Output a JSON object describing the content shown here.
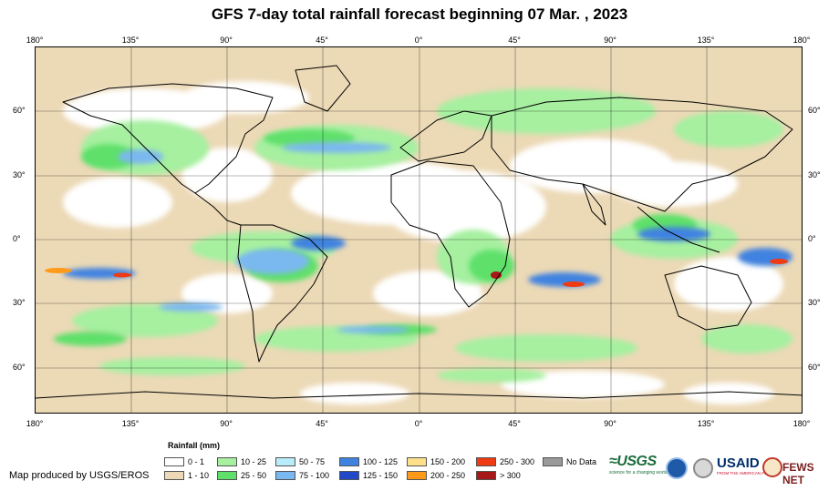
{
  "title": "GFS 7-day total rainfall forecast beginning 07 Mar. , 2023",
  "longitude_ticks": [
    "180°",
    "135°",
    "90°",
    "45°",
    "0°",
    "45°",
    "90°",
    "135°",
    "180°"
  ],
  "latitude_ticks": [
    "60°",
    "30°",
    "0°",
    "30°",
    "60°"
  ],
  "legend": {
    "title": "Rainfall (mm)",
    "items": [
      {
        "label": "0 - 1",
        "color": "#ffffff"
      },
      {
        "label": "1 - 10",
        "color": "#ecd9b6"
      },
      {
        "label": "10 - 25",
        "color": "#a6f0a0"
      },
      {
        "label": "25 - 50",
        "color": "#5fe06a"
      },
      {
        "label": "50 - 75",
        "color": "#b8ecf8"
      },
      {
        "label": "75 - 100",
        "color": "#7ab8f0"
      },
      {
        "label": "100 - 125",
        "color": "#3f82e0"
      },
      {
        "label": "125 - 150",
        "color": "#1f49c8"
      },
      {
        "label": "150 - 200",
        "color": "#ffe08a"
      },
      {
        "label": "200 - 250",
        "color": "#ff9a1a"
      },
      {
        "label": "250 - 300",
        "color": "#f03a12"
      },
      {
        "label": "> 300",
        "color": "#a81818"
      },
      {
        "label": "No Data",
        "color": "#9a9a9a"
      }
    ]
  },
  "credit": "Map produced by USGS/EROS",
  "logos": {
    "usgs": "≈USGS",
    "usgs_tagline": "science for a changing world",
    "usaid": "USAID",
    "usaid_tagline": "FROM THE AMERICAN PEOPLE",
    "fews": "FEWS NET"
  },
  "icons": [
    "usgs-logo-icon",
    "noaa-logo-icon",
    "us-seal-icon",
    "usaid-logo-icon",
    "fews-net-logo-icon"
  ]
}
